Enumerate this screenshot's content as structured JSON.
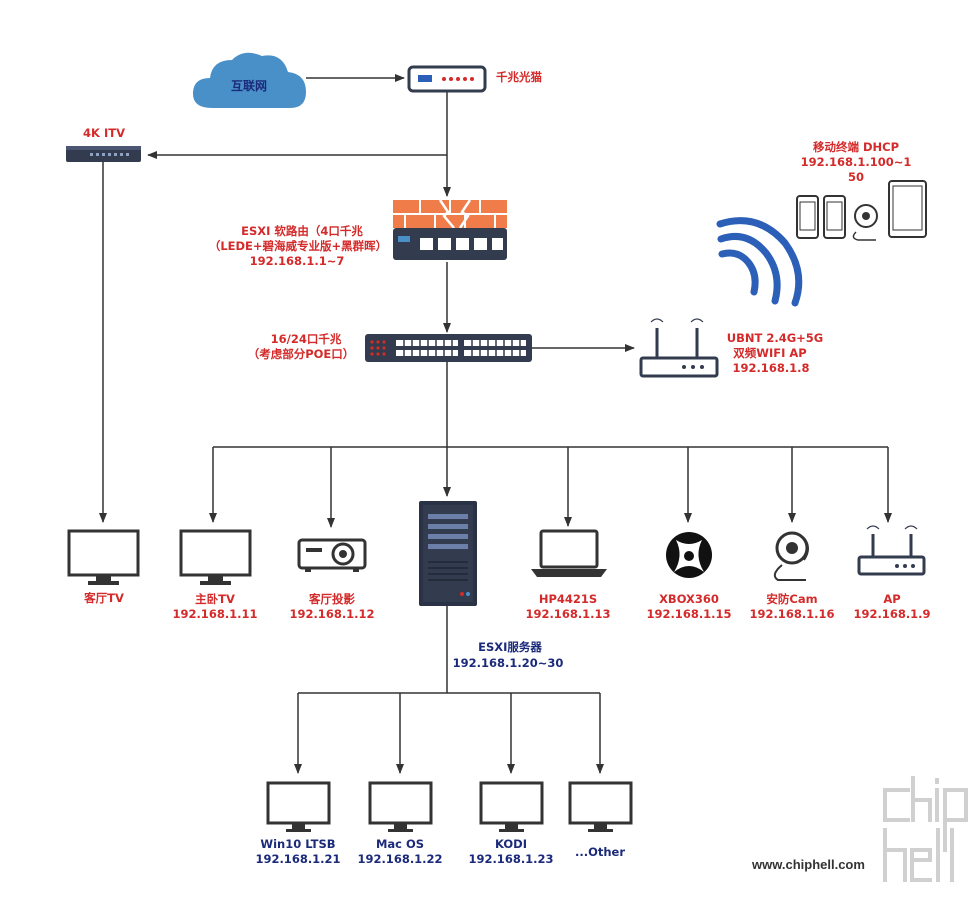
{
  "nodes": {
    "internet": {
      "name": "互联网"
    },
    "modem": {
      "name": "千兆光猫"
    },
    "itv": {
      "name": "4K ITV"
    },
    "mobile": {
      "line1": "移动终端 DHCP",
      "line2": "192.168.1.100~1",
      "line3": "50"
    },
    "router": {
      "line1": "ESXI 软路由（4口千兆",
      "line2": "（LEDE+碧海威专业版+黑群晖）",
      "line3": "192.168.1.1~7"
    },
    "switch": {
      "line1": "16/24口千兆",
      "line2": "（考虑部分POE口）"
    },
    "ubnt_ap": {
      "line1": "UBNT 2.4G+5G",
      "line2": "双频WIFI AP",
      "line3": "192.168.1.8"
    },
    "living_tv": {
      "name": "客厅TV"
    },
    "bedroom_tv": {
      "name": "主卧TV",
      "ip": "192.168.1.11"
    },
    "projector": {
      "name": "客厅投影",
      "ip": "192.168.1.12"
    },
    "laptop": {
      "name": "HP4421S",
      "ip": "192.168.1.13"
    },
    "xbox": {
      "name": "XBOX360",
      "ip": "192.168.1.15"
    },
    "cam": {
      "name": "安防Cam",
      "ip": "192.168.1.16"
    },
    "ap2": {
      "name": "AP",
      "ip": "192.168.1.9"
    },
    "esxi_server": {
      "name": "ESXI服务器",
      "ip": "192.168.1.20~30"
    },
    "vm_win10": {
      "name": "Win10 LTSB",
      "ip": "192.168.1.21"
    },
    "vm_mac": {
      "name": "Mac OS",
      "ip": "192.168.1.22"
    },
    "vm_kodi": {
      "name": "KODI",
      "ip": "192.168.1.23"
    },
    "vm_other": {
      "name": "...Other"
    }
  },
  "watermark": {
    "url": "www.chiphell.com",
    "logo_text": "chip hell"
  },
  "colors": {
    "red_label": "#d42a2a",
    "blue_label": "#1b2a7a",
    "cloud": "#4a90c8",
    "wifi": "#2b5fb8",
    "device_dark": "#333b4e",
    "line": "#333333"
  }
}
